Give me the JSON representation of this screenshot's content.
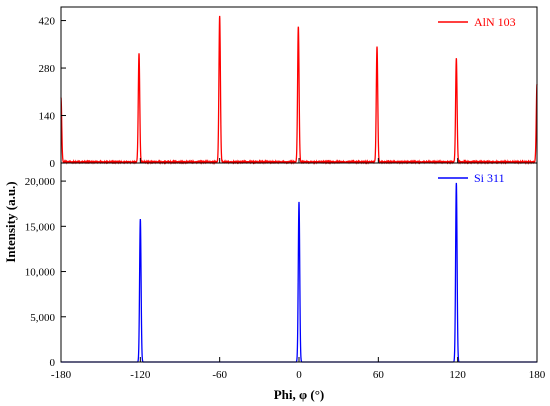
{
  "chart_data": {
    "type": "line",
    "xlabel": "Phi, φ (°)",
    "ylabel": "Intensity (a.u.)",
    "xlim": [
      -180,
      180
    ],
    "x_ticks": [
      -180,
      -120,
      -60,
      0,
      60,
      120,
      180
    ],
    "x_tick_labels": [
      "-180",
      "-120",
      "-60",
      "0",
      "60",
      "120",
      "180"
    ],
    "grid": false,
    "legend_placement": "top-right",
    "panels": [
      {
        "series_name": "AlN 103",
        "color": "#ff0000",
        "ylim": [
          0,
          460
        ],
        "y_ticks": [
          0,
          140,
          280,
          420
        ],
        "y_tick_labels": [
          "0",
          "140",
          "280",
          "420"
        ],
        "baseline": 3,
        "peaks": [
          {
            "x": -180,
            "y": 190
          },
          {
            "x": -121,
            "y": 320
          },
          {
            "x": -60,
            "y": 430
          },
          {
            "x": -0.5,
            "y": 400
          },
          {
            "x": 59,
            "y": 340
          },
          {
            "x": 119,
            "y": 305
          },
          {
            "x": 180,
            "y": 230
          }
        ]
      },
      {
        "series_name": "Si 311",
        "color": "#0000ff",
        "ylim": [
          0,
          22000
        ],
        "y_ticks": [
          0,
          5000,
          10000,
          15000,
          20000
        ],
        "y_tick_labels": [
          "0",
          "5,000",
          "10,000",
          "15,000",
          "20,000"
        ],
        "baseline": 0,
        "peaks": [
          {
            "x": -120,
            "y": 15800
          },
          {
            "x": 0,
            "y": 17700
          },
          {
            "x": 119,
            "y": 19800
          }
        ]
      }
    ]
  }
}
